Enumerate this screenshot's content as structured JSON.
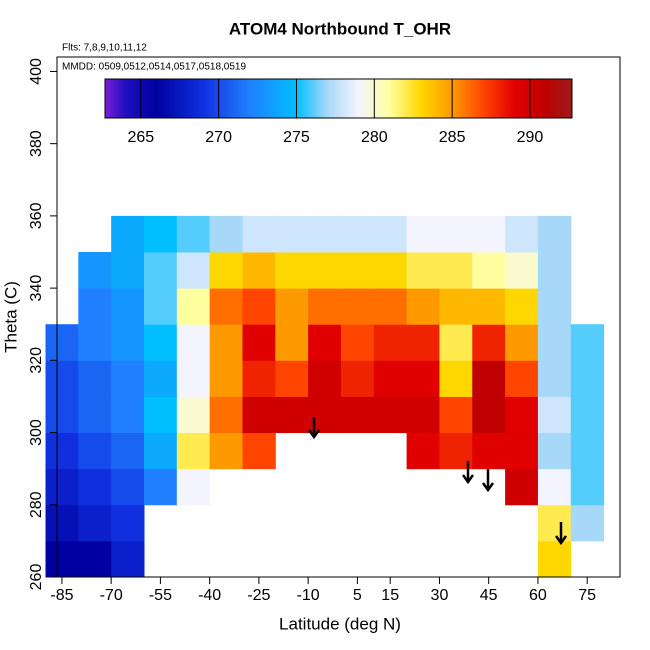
{
  "chart_data": {
    "type": "heatmap",
    "title": "ATOM4 Northbound T_OHR",
    "subtitle": "Flts: 7,8,9,10,11,12",
    "annotation": "MMDD: 0509,0512,0514,0517,0518,0519",
    "xlabel": "Latitude (deg N)",
    "ylabel": "Theta (C)",
    "xlim": [
      -86.5,
      85
    ],
    "xticks": [
      -85,
      -70,
      -55,
      -40,
      -25,
      -10,
      5,
      15,
      30,
      45,
      60,
      75
    ],
    "ylim": [
      260,
      404
    ],
    "yticks": [
      260,
      280,
      300,
      320,
      340,
      360,
      380,
      400
    ],
    "x": [
      -85,
      -75,
      -65,
      -55,
      -45,
      -35,
      -25,
      -15,
      -5,
      5,
      15,
      25,
      35,
      45,
      55,
      65,
      75
    ],
    "y": [
      265,
      275,
      285,
      295,
      305,
      315,
      325,
      335,
      345,
      355
    ],
    "z": [
      [
        266,
        266,
        268,
        null,
        null,
        null,
        null,
        null,
        null,
        null,
        null,
        null,
        null,
        null,
        null,
        283,
        null
      ],
      [
        267,
        268,
        269,
        null,
        null,
        null,
        null,
        null,
        null,
        null,
        null,
        null,
        null,
        null,
        null,
        282,
        277
      ],
      [
        268,
        269,
        270,
        272,
        279,
        null,
        null,
        null,
        null,
        null,
        null,
        null,
        null,
        null,
        290,
        279,
        276
      ],
      [
        269,
        270,
        271,
        274,
        282,
        285,
        287,
        null,
        null,
        null,
        null,
        289,
        288,
        289,
        289,
        277,
        276
      ],
      [
        270,
        271,
        272,
        275,
        280,
        286,
        290,
        290,
        290,
        290,
        290,
        290,
        287,
        291,
        289,
        278,
        276
      ],
      [
        270,
        271,
        272,
        274,
        279,
        285,
        288,
        287,
        290,
        288,
        289,
        289,
        283,
        291,
        287,
        277,
        276
      ],
      [
        271,
        272,
        273,
        275,
        279,
        285,
        289,
        285,
        289,
        287,
        288,
        288,
        282,
        288,
        285,
        277,
        276
      ],
      [
        null,
        272,
        273,
        276,
        281,
        286,
        287,
        285,
        286,
        286,
        286,
        285,
        284,
        284,
        283,
        277,
        null
      ],
      [
        null,
        273,
        274,
        276,
        278,
        283,
        284,
        283,
        283,
        283,
        283,
        282,
        282,
        281,
        280,
        277,
        null
      ],
      [
        null,
        null,
        274,
        275,
        276,
        277,
        278,
        278,
        278,
        278,
        278,
        279,
        279,
        279,
        278,
        277,
        null
      ]
    ],
    "colorbar": {
      "lim": [
        262.7,
        292.7
      ],
      "ticks": [
        265,
        270,
        275,
        280,
        285,
        290
      ]
    },
    "colorscale": [
      [
        262.7,
        "#7b1fd8"
      ],
      [
        264,
        "#2010c0"
      ],
      [
        266,
        "#0000a0"
      ],
      [
        269,
        "#1030e0"
      ],
      [
        272,
        "#2080ff"
      ],
      [
        275,
        "#00bfff"
      ],
      [
        277,
        "#a8d8f8"
      ],
      [
        279,
        "#f4f4ff"
      ],
      [
        281,
        "#ffffa0"
      ],
      [
        283,
        "#ffd700"
      ],
      [
        285,
        "#ff9900"
      ],
      [
        287,
        "#ff4500"
      ],
      [
        289,
        "#e00000"
      ],
      [
        291,
        "#c00000"
      ],
      [
        292.7,
        "#9b1c1c"
      ]
    ]
  }
}
